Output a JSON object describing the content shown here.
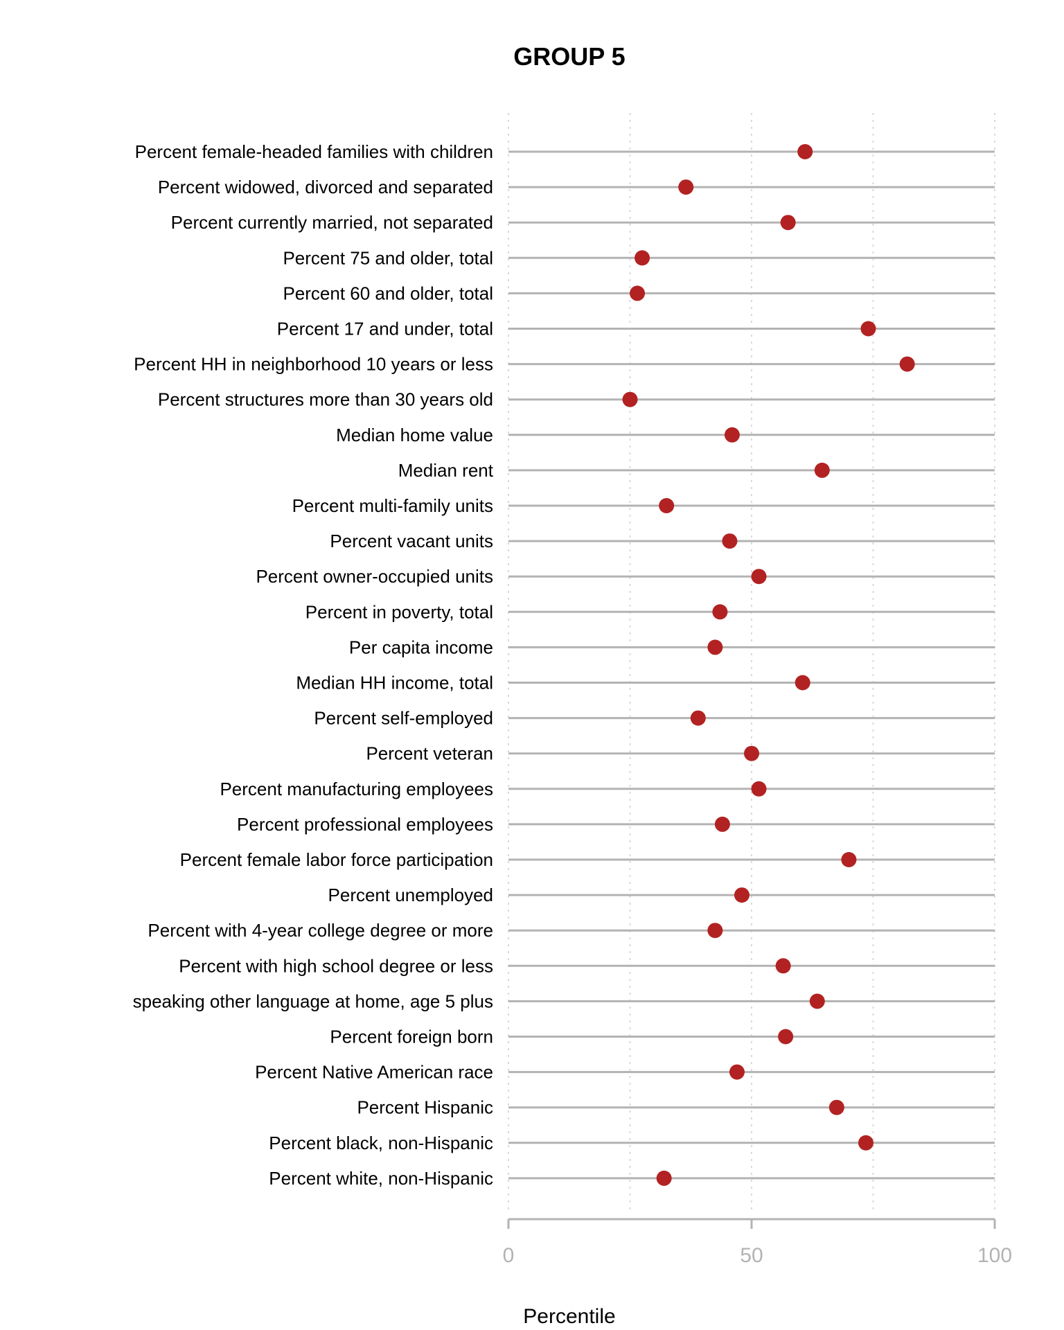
{
  "chart_data": {
    "type": "scatter",
    "title": "GROUP 5",
    "xlabel": "Percentile",
    "ylabel": "",
    "xlim": [
      0,
      100
    ],
    "xticks": [
      0,
      50,
      100
    ],
    "xticks_labels": [
      "0",
      "50",
      "100"
    ],
    "minor_gridlines": [
      25,
      75
    ],
    "grid": true,
    "categories": [
      "Percent female-headed families with children",
      "Percent widowed, divorced and separated",
      "Percent currently married, not separated",
      "Percent 75 and older, total",
      "Percent 60 and older, total",
      "Percent 17 and under, total",
      "Percent HH in neighborhood 10 years or less",
      "Percent structures more than 30 years old",
      "Median home value",
      "Median rent",
      "Percent multi-family units",
      "Percent vacant units",
      "Percent owner-occupied units",
      "Percent in poverty, total",
      "Per capita income",
      "Median HH income, total",
      "Percent self-employed",
      "Percent veteran",
      "Percent manufacturing employees",
      "Percent professional employees",
      "Percent female labor force participation",
      "Percent unemployed",
      "Percent with 4-year college degree or more",
      "Percent with high school degree or less",
      "speaking other language at home, age 5 plus",
      "Percent foreign born",
      "Percent Native American race",
      "Percent Hispanic",
      "Percent black, non-Hispanic",
      "Percent white, non-Hispanic"
    ],
    "values": [
      61,
      36.5,
      57.5,
      27.5,
      26.5,
      74,
      82,
      25,
      46,
      64.5,
      32.5,
      45.5,
      51.5,
      43.5,
      42.5,
      60.5,
      39,
      50,
      51.5,
      44,
      70,
      48,
      42.5,
      56.5,
      63.5,
      57,
      47,
      67.5,
      73.5,
      32
    ],
    "colors": {
      "point": "#b22222",
      "line": "#b3b3b3",
      "grid": "#d9d9d9",
      "tick_text": "#b3b3b3"
    }
  }
}
